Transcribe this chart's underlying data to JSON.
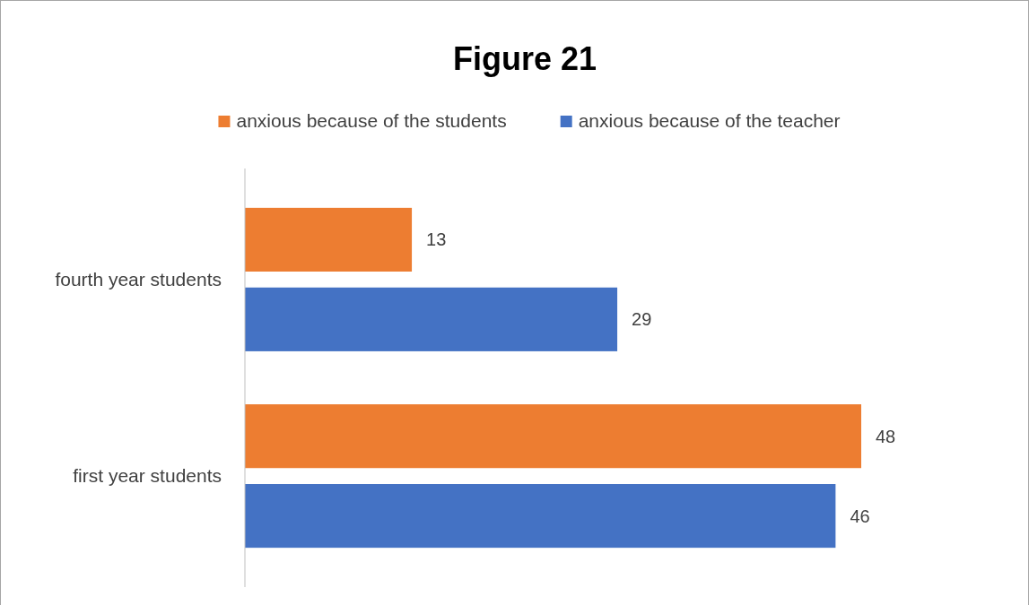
{
  "chart_data": {
    "type": "bar",
    "orientation": "horizontal",
    "title": "Figure 21",
    "categories": [
      "fourth year students",
      "first year students"
    ],
    "series": [
      {
        "name": "anxious because of the students",
        "color": "#ed7d31",
        "values": [
          13,
          48
        ]
      },
      {
        "name": "anxious because of the teacher",
        "color": "#4472c4",
        "values": [
          29,
          46
        ]
      }
    ],
    "data_labels": true,
    "legend": "top"
  }
}
